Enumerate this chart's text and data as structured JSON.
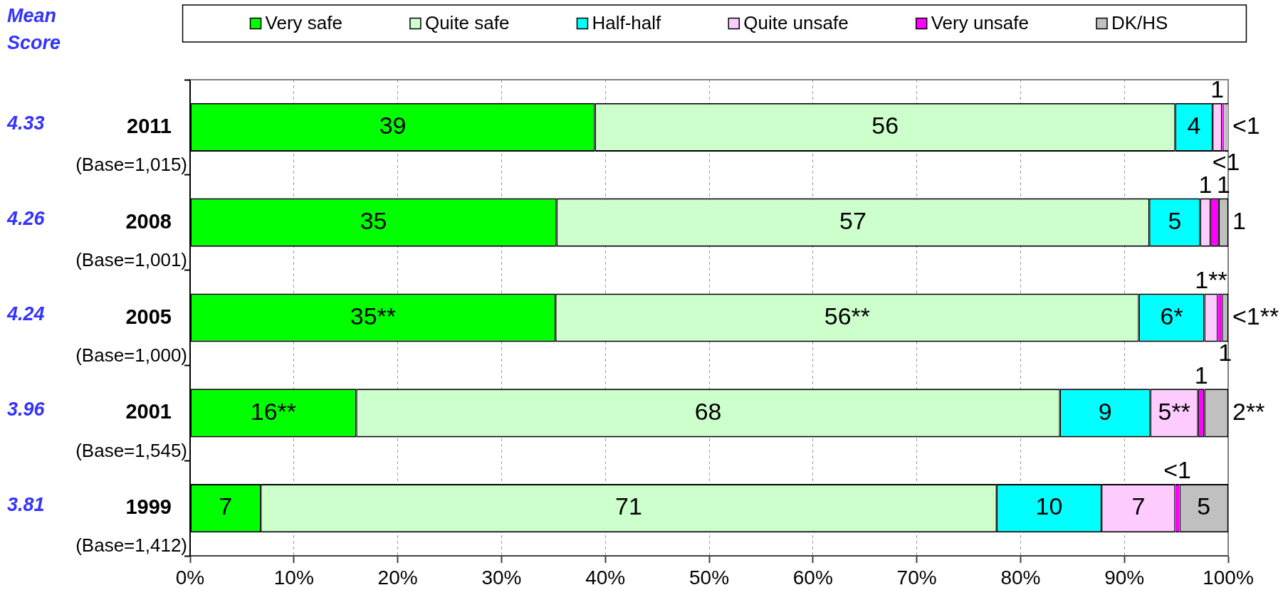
{
  "chart_data": {
    "type": "bar",
    "orientation": "horizontal",
    "stacked": true,
    "categories": [
      "2011\n(Base=1,015)",
      "2008\n(Base=1,001)",
      "2005\n(Base=1,000)",
      "2001\n(Base=1,545)",
      "1999\n(Base=1,412)"
    ],
    "y2_categories": [
      "4.33",
      "4.26",
      "4.24",
      "3.96",
      "3.81"
    ],
    "series": [
      {
        "name": "Very safe",
        "color": "#00ff00",
        "values": [
          39.0,
          35.3,
          35.2,
          16.0,
          6.8
        ],
        "value_labels": [
          "39",
          "35",
          "35**",
          "16**",
          "7"
        ]
      },
      {
        "name": "Quite safe",
        "color": "#ccffcc",
        "values": [
          55.9,
          57.1,
          56.2,
          67.8,
          70.9
        ],
        "value_labels": [
          "56",
          "57",
          "56**",
          "68",
          "71"
        ]
      },
      {
        "name": "Half-half",
        "color": "#00ffff",
        "values": [
          3.6,
          4.9,
          6.3,
          8.7,
          10.1
        ],
        "value_labels": [
          "4",
          "5",
          "6*",
          "9",
          "10"
        ]
      },
      {
        "name": "Quite unsafe",
        "color": "#ffccff",
        "values": [
          0.9,
          1.0,
          1.3,
          4.6,
          7.1
        ],
        "value_labels": [
          "1",
          "1",
          "1**",
          "5**",
          "7"
        ]
      },
      {
        "name": "Very unsafe",
        "color": "#ff00ff",
        "values": [
          0.2,
          0.8,
          0.4,
          0.6,
          0.4
        ],
        "value_labels": [
          "<1",
          "1",
          "<1**",
          "1",
          "<1"
        ]
      },
      {
        "name": "DK/HS",
        "color": "#c0c0c0",
        "values": [
          0.4,
          0.9,
          0.6,
          2.3,
          4.7
        ],
        "value_labels": [
          "<1",
          "1",
          "1",
          "2**",
          "5"
        ]
      }
    ],
    "xlim": [
      0,
      100
    ],
    "xticks": [
      {
        "value": 0,
        "label": "0%"
      },
      {
        "value": 10,
        "label": "10%"
      },
      {
        "value": 20,
        "label": "20%"
      },
      {
        "value": 30,
        "label": "30%"
      },
      {
        "value": 40,
        "label": "40%"
      },
      {
        "value": 50,
        "label": "50%"
      },
      {
        "value": 60,
        "label": "60%"
      },
      {
        "value": 70,
        "label": "70%"
      },
      {
        "value": 80,
        "label": "80%"
      },
      {
        "value": 90,
        "label": "90%"
      },
      {
        "value": 100,
        "label": "100%"
      }
    ],
    "grid": "x",
    "legend": "top",
    "annotations": [
      "Mean Score"
    ]
  }
}
